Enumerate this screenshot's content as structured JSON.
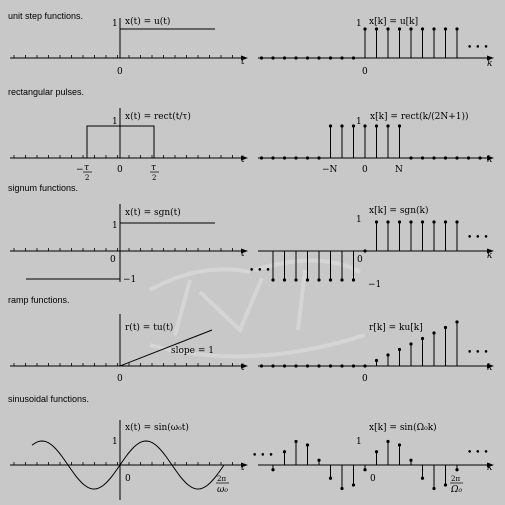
{
  "sections": {
    "unit_step": "unit step functions.",
    "rect": "rectangular pulses.",
    "signum": "signum functions.",
    "ramp": "ramp functions.",
    "sinusoidal": "sinusoidal functions."
  },
  "formulas": {
    "step_cont": "x(t) = u(t)",
    "step_disc": "x[k] = u[k]",
    "rect_cont": "x(t) = rect(t/τ)",
    "rect_disc": "x[k] = rect(k/(2N+1))",
    "sgn_cont": "x(t) = sgn(t)",
    "sgn_disc": "x[k] = sgn(k)",
    "ramp_cont": "r(t) = tu(t)",
    "ramp_disc": "r[k] = ku[k]",
    "sin_cont": "x(t) = sin(ω₀t)",
    "sin_disc": "x[k] = sin(Ω₀k)"
  },
  "labels": {
    "zero": "0",
    "one": "1",
    "minus_one": "−1",
    "t": "t",
    "k": "k",
    "ellipsis": "• • •",
    "minus_tau": "−",
    "tau": "τ",
    "two": "2",
    "minus_N": "−N",
    "N": "N",
    "slope": "slope = 1",
    "two_pi": "2π",
    "omega0": "ω₀",
    "Omega0": "Ω₀"
  },
  "watermark": "TNT",
  "colors": {
    "background": "#c8c8c8",
    "ink": "#000000"
  }
}
